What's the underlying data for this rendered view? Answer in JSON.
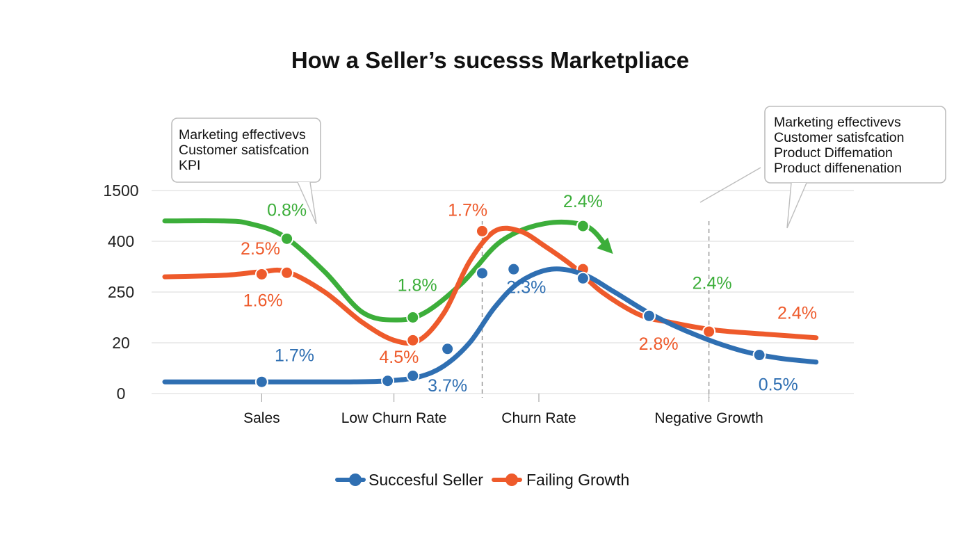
{
  "chart_data": {
    "type": "line",
    "title": "How a Seller’s sucesss Marketpliace",
    "xlabel": "",
    "ylabel": "",
    "y_tick_labels": [
      "0",
      "20",
      "250",
      "400",
      "1500"
    ],
    "ylim": [
      0,
      4
    ],
    "grid": true,
    "x_tick_labels": [
      "Sales",
      "Low Churn Rate",
      "Churn Rate",
      "Negative Growth"
    ],
    "xlim": [
      0,
      10
    ],
    "x_tick_positions": [
      0.6,
      2.7,
      5.0,
      7.7
    ],
    "legend_position": "bottom",
    "series": [
      {
        "name": "",
        "color": "#3cae3a",
        "arrow_end": true,
        "x": [
          -0.6,
          0.0,
          0.4,
          0.95,
          1.6,
          2.2,
          2.75,
          3.2,
          3.8,
          4.4,
          5.1,
          5.75,
          6.1
        ],
        "y": [
          3.4,
          3.4,
          3.35,
          3.1,
          2.4,
          1.6,
          1.45,
          1.6,
          2.2,
          3.0,
          3.35,
          3.3,
          2.85
        ],
        "markers": [
          [
            1.0,
            3.05
          ],
          [
            3.0,
            1.5
          ],
          [
            5.7,
            3.3
          ]
        ],
        "labels": [
          {
            "text": "0.8%",
            "x": 1.0,
            "y": 3.5
          },
          {
            "text": "1.8%",
            "x": 3.07,
            "y": 2.02
          },
          {
            "text": "2.4%",
            "x": 5.7,
            "y": 3.67
          },
          {
            "text": "2.4%",
            "x": 7.75,
            "y": 2.06
          }
        ]
      },
      {
        "name": "Failing Growth",
        "color": "#ee5a2b",
        "x": [
          -0.6,
          0.0,
          0.6,
          1.0,
          1.6,
          2.2,
          2.7,
          3.1,
          3.5,
          3.9,
          4.3,
          4.7,
          5.1,
          5.55,
          6.0,
          6.6,
          7.1,
          7.8,
          8.6,
          9.4
        ],
        "y": [
          2.3,
          2.33,
          2.4,
          2.4,
          2.0,
          1.4,
          1.05,
          1.05,
          1.6,
          2.6,
          3.2,
          3.2,
          2.9,
          2.5,
          2.0,
          1.55,
          1.4,
          1.25,
          1.17,
          1.1
        ],
        "markers": [
          [
            0.6,
            2.35
          ],
          [
            1.0,
            2.38
          ],
          [
            3.0,
            1.05
          ],
          [
            4.1,
            3.2
          ],
          [
            5.7,
            2.45
          ],
          [
            7.7,
            1.22
          ]
        ],
        "labels": [
          {
            "text": "2.5%",
            "x": 0.58,
            "y": 2.74
          },
          {
            "text": "1.6%",
            "x": 0.62,
            "y": 1.72
          },
          {
            "text": "4.5%",
            "x": 2.78,
            "y": 0.6
          },
          {
            "text": "1.7%",
            "x": 3.87,
            "y": 3.5
          },
          {
            "text": "2.8%",
            "x": 6.9,
            "y": 0.86
          },
          {
            "text": "2.4%",
            "x": 9.1,
            "y": 1.47
          }
        ]
      },
      {
        "name": "Succesful Seller",
        "color": "#2f6fb2",
        "x": [
          -0.6,
          0.0,
          0.6,
          1.5,
          2.0,
          2.6,
          3.1,
          3.5,
          3.9,
          4.3,
          4.7,
          5.2,
          5.7,
          6.2,
          6.8,
          7.5,
          8.2,
          8.8,
          9.4
        ],
        "y": [
          0.23,
          0.23,
          0.23,
          0.23,
          0.23,
          0.25,
          0.33,
          0.55,
          1.0,
          1.7,
          2.2,
          2.45,
          2.35,
          2.0,
          1.55,
          1.15,
          0.85,
          0.7,
          0.62
        ],
        "markers": [
          [
            0.6,
            0.23
          ],
          [
            2.6,
            0.25
          ],
          [
            3.0,
            0.35
          ],
          [
            3.55,
            0.88
          ],
          [
            4.1,
            2.37
          ],
          [
            4.6,
            2.45
          ],
          [
            5.7,
            2.27
          ],
          [
            6.75,
            1.53
          ],
          [
            8.5,
            0.76
          ]
        ],
        "labels": [
          {
            "text": "1.7%",
            "x": 1.12,
            "y": 0.64
          },
          {
            "text": "3.7%",
            "x": 3.55,
            "y": 0.04
          },
          {
            "text": "2.3%",
            "x": 4.8,
            "y": 1.98
          },
          {
            "text": "0.5%",
            "x": 8.8,
            "y": 0.06
          }
        ]
      }
    ],
    "vlines": [
      4.1,
      7.7
    ],
    "legend": [
      "Succesful Seller",
      "Failing Growth"
    ],
    "annotations": [
      {
        "lines": [
          "Marketing effectivevs",
          "Customer satisfcation",
          "KPI"
        ]
      },
      {
        "lines": [
          "Marketing effectivevs",
          "Customer satisfcation",
          "Product Diffemation",
          "Product diffenenation"
        ]
      }
    ]
  }
}
